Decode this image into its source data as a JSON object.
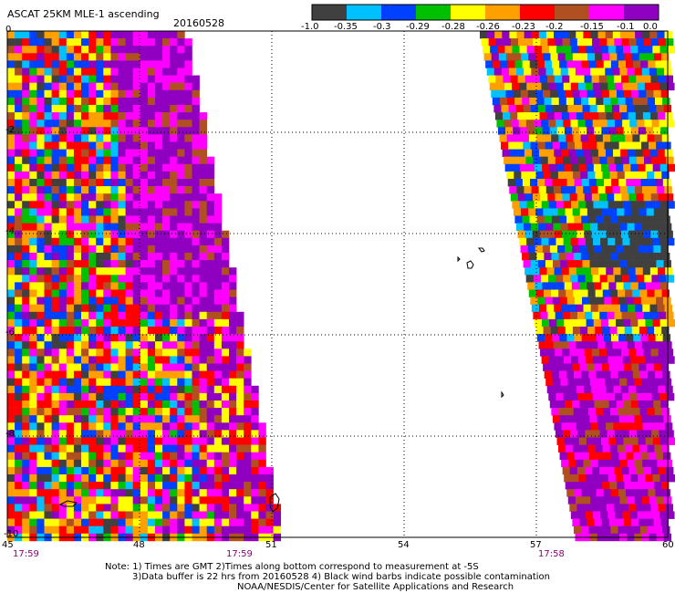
{
  "header": {
    "title": "ASCAT 25KM MLE-1 ascending",
    "date": "20160528"
  },
  "colorbar": {
    "labels": [
      "-1.0",
      "-0.35",
      "-0.3",
      "-0.29",
      "-0.28",
      "-0.26",
      "-0.23",
      "-0.2",
      "-0.15",
      "-0.1",
      "0.0"
    ],
    "colors": [
      "#404040",
      "#00c0ff",
      "#0040ff",
      "#00c000",
      "#ffff00",
      "#ffa000",
      "#ff0000",
      "#b05020",
      "#ff00ff",
      "#9000c0"
    ]
  },
  "axes": {
    "x_ticks": [
      "45",
      "48",
      "51",
      "54",
      "57",
      "60"
    ],
    "y_ticks": [
      "0",
      "-2",
      "-4",
      "-6",
      "-8",
      "-10"
    ],
    "xlim": [
      45,
      60
    ],
    "ylim": [
      -10,
      0
    ]
  },
  "times": [
    "17:59",
    "17:59",
    "17:58"
  ],
  "notes": {
    "line1": "Note: 1) Times are GMT 2)Times along bottom correspond to measurement at -5S",
    "line2": "3)Data buffer is 22 hrs from 20160528 4) Black wind barbs indicate possible contamination",
    "line3": "NOAA/NESDIS/Center for Satellite Applications and Research"
  }
}
